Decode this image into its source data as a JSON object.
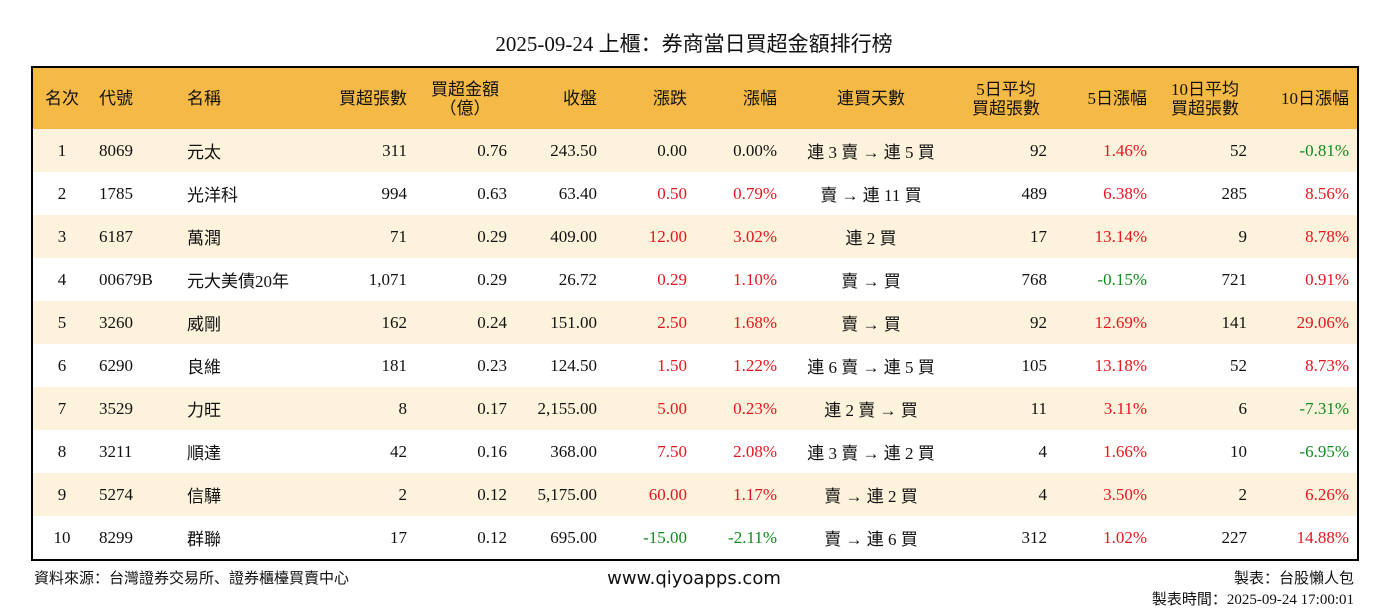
{
  "header": {
    "title": "2025-09-24 上櫃：券商當日買超金額排行榜"
  },
  "table": {
    "columns": [
      [
        "名次"
      ],
      [
        "代號"
      ],
      [
        "名稱"
      ],
      [
        "買超張數"
      ],
      [
        "買超金額",
        "（億）"
      ],
      [
        "收盤"
      ],
      [
        "漲跌"
      ],
      [
        "漲幅"
      ],
      [
        "連買天數"
      ],
      [
        "5日平均",
        "買超張數"
      ],
      [
        "5日漲幅"
      ],
      [
        "10日平均",
        "買超張數"
      ],
      [
        "10日漲幅"
      ]
    ],
    "rows": [
      [
        "1",
        "8069",
        "元太",
        "311",
        "0.76",
        "243.50",
        "0.00",
        "0.00%",
        "連 3 賣 → 連 5 買",
        "92",
        "1.46%",
        "52",
        "-0.81%"
      ],
      [
        "2",
        "1785",
        "光洋科",
        "994",
        "0.63",
        "63.40",
        "0.50",
        "0.79%",
        "賣 → 連 11 買",
        "489",
        "6.38%",
        "285",
        "8.56%"
      ],
      [
        "3",
        "6187",
        "萬潤",
        "71",
        "0.29",
        "409.00",
        "12.00",
        "3.02%",
        "連 2 買",
        "17",
        "13.14%",
        "9",
        "8.78%"
      ],
      [
        "4",
        "00679B",
        "元大美債20年",
        "1,071",
        "0.29",
        "26.72",
        "0.29",
        "1.10%",
        "賣 → 買",
        "768",
        "-0.15%",
        "721",
        "0.91%"
      ],
      [
        "5",
        "3260",
        "威剛",
        "162",
        "0.24",
        "151.00",
        "2.50",
        "1.68%",
        "賣 → 買",
        "92",
        "12.69%",
        "141",
        "29.06%"
      ],
      [
        "6",
        "6290",
        "良維",
        "181",
        "0.23",
        "124.50",
        "1.50",
        "1.22%",
        "連 6 賣 → 連 5 買",
        "105",
        "13.18%",
        "52",
        "8.73%"
      ],
      [
        "7",
        "3529",
        "力旺",
        "8",
        "0.17",
        "2,155.00",
        "5.00",
        "0.23%",
        "連 2 賣 → 買",
        "11",
        "3.11%",
        "6",
        "-7.31%"
      ],
      [
        "8",
        "3211",
        "順達",
        "42",
        "0.16",
        "368.00",
        "7.50",
        "2.08%",
        "連 3 賣 → 連 2 買",
        "4",
        "1.66%",
        "10",
        "-6.95%"
      ],
      [
        "9",
        "5274",
        "信驊",
        "2",
        "0.12",
        "5,175.00",
        "60.00",
        "1.17%",
        "賣 → 連 2 買",
        "4",
        "3.50%",
        "2",
        "6.26%"
      ],
      [
        "10",
        "8299",
        "群聯",
        "17",
        "0.12",
        "695.00",
        "-15.00",
        "-2.11%",
        "賣 → 連 6 買",
        "312",
        "1.02%",
        "227",
        "14.88%"
      ]
    ],
    "header_color": "#f5b945",
    "stripe_color": "#fdf3dc",
    "up_color": "#e8141e",
    "down_color": "#118a1e"
  },
  "footer": {
    "source": "資料來源：台灣證券交易所、證券櫃檯買賣中心",
    "url": "www.qiyoapps.com",
    "author": "製表：台股懶人包",
    "time": "製表時間：2025-09-24 17:00:01"
  }
}
